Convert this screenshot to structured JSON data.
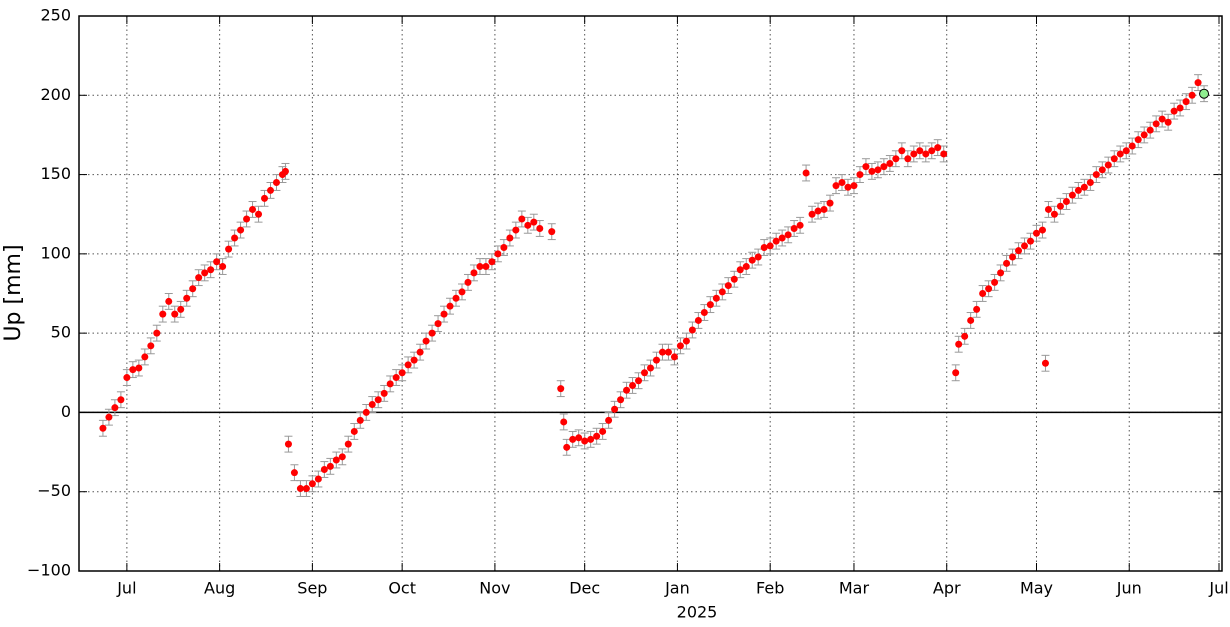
{
  "chart_data": {
    "type": "scatter",
    "y_label": "Up [mm]",
    "x_label": "2025",
    "xlim": [
      -16,
      366
    ],
    "xticks": [
      {
        "value": 0,
        "label": "Jul"
      },
      {
        "value": 31,
        "label": "Aug"
      },
      {
        "value": 62,
        "label": "Sep"
      },
      {
        "value": 92,
        "label": "Oct"
      },
      {
        "value": 123,
        "label": "Nov"
      },
      {
        "value": 153,
        "label": "Dec"
      },
      {
        "value": 184,
        "label": "Jan"
      },
      {
        "value": 215,
        "label": "Feb"
      },
      {
        "value": 243,
        "label": "Mar"
      },
      {
        "value": 274,
        "label": "Apr"
      },
      {
        "value": 304,
        "label": "May"
      },
      {
        "value": 335,
        "label": "Jun"
      },
      {
        "value": 365,
        "label": "Jul"
      }
    ],
    "ylim": [
      -100,
      250
    ],
    "yticks": [
      {
        "value": -100,
        "label": "−100"
      },
      {
        "value": -50,
        "label": "−50"
      },
      0,
      50,
      100,
      150,
      200,
      250
    ],
    "grid": true,
    "zero_line": true,
    "series": [
      {
        "color": "#ff0000",
        "error": 5,
        "x": [
          -8,
          -6,
          -4,
          -2,
          0,
          2,
          4,
          6,
          8,
          10,
          12,
          14,
          16,
          18,
          20,
          22,
          24,
          26,
          28,
          30,
          32,
          34,
          36,
          38,
          40,
          42,
          44,
          46,
          48,
          50,
          52,
          53,
          54,
          56,
          58,
          60,
          62,
          64,
          66,
          68,
          70,
          72,
          74,
          76,
          78,
          80,
          82,
          84,
          86,
          88,
          90,
          92,
          94,
          96,
          98,
          100,
          102,
          104,
          106,
          108,
          110,
          112,
          114,
          116,
          118,
          120,
          122,
          124,
          126,
          128,
          130,
          132,
          134,
          136,
          138,
          142,
          145,
          146,
          147,
          149,
          151,
          153,
          155,
          157,
          159,
          161,
          163,
          165,
          167,
          169,
          171,
          173,
          175,
          177,
          179,
          181,
          183,
          185,
          187,
          189,
          191,
          193,
          195,
          197,
          199,
          201,
          203,
          205,
          207,
          209,
          211,
          213,
          215,
          217,
          219,
          221,
          223,
          225,
          227,
          229,
          231,
          233,
          235,
          237,
          239,
          241,
          243,
          245,
          247,
          249,
          251,
          253,
          255,
          257,
          259,
          261,
          263,
          265,
          267,
          269,
          271,
          273,
          277,
          278,
          280,
          282,
          284,
          286,
          288,
          290,
          292,
          294,
          296,
          298,
          300,
          302,
          304,
          306,
          307,
          308,
          310,
          312,
          314,
          316,
          318,
          320,
          322,
          324,
          326,
          328,
          330,
          332,
          334,
          336,
          338,
          340,
          342,
          344,
          346,
          348,
          350,
          352,
          354,
          356,
          358
        ],
        "values": [
          -10,
          -3,
          3,
          8,
          22,
          27,
          28,
          35,
          42,
          50,
          62,
          70,
          62,
          65,
          72,
          78,
          85,
          88,
          90,
          95,
          92,
          103,
          110,
          115,
          122,
          128,
          125,
          135,
          140,
          145,
          150,
          152,
          -20,
          -38,
          -48,
          -48,
          -45,
          -42,
          -36,
          -34,
          -30,
          -28,
          -20,
          -12,
          -5,
          0,
          5,
          8,
          12,
          18,
          22,
          25,
          30,
          33,
          38,
          45,
          50,
          56,
          62,
          67,
          72,
          76,
          82,
          88,
          92,
          92,
          95,
          100,
          104,
          110,
          115,
          122,
          118,
          120,
          116,
          114,
          15,
          -6,
          -22,
          -17,
          -16,
          -18,
          -17,
          -15,
          -12,
          -5,
          2,
          8,
          14,
          17,
          20,
          25,
          28,
          33,
          38,
          38,
          35,
          42,
          45,
          52,
          58,
          63,
          68,
          72,
          76,
          80,
          84,
          90,
          92,
          96,
          98,
          104,
          105,
          108,
          110,
          112,
          116,
          118,
          151,
          125,
          127,
          128,
          132,
          143,
          145,
          142,
          143,
          150,
          155,
          152,
          153,
          155,
          157,
          160,
          165,
          160,
          163,
          165,
          163,
          165,
          167,
          163,
          25,
          43,
          48,
          58,
          65,
          75,
          78,
          82,
          88,
          94,
          98,
          102,
          105,
          108,
          113,
          115,
          31,
          128,
          125,
          130,
          133,
          137,
          140,
          142,
          145,
          150,
          153,
          156,
          160,
          163,
          165,
          168,
          172,
          175,
          178,
          182,
          185,
          183,
          190,
          192,
          196,
          200,
          208
        ]
      },
      {
        "color": "#90ee90",
        "error": 5,
        "x": [
          360
        ],
        "values": [
          201
        ]
      }
    ]
  }
}
